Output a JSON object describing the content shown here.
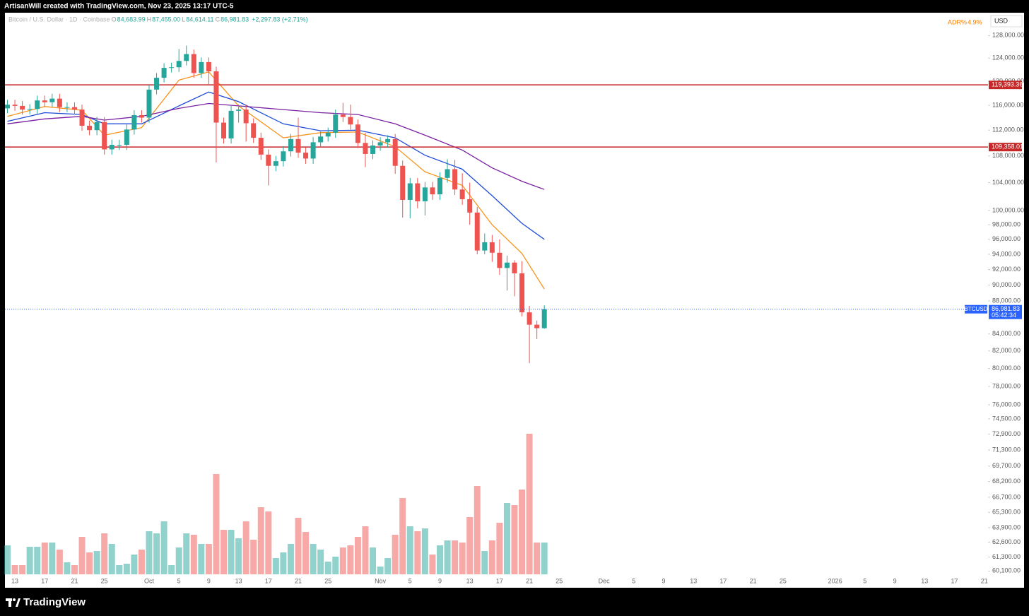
{
  "header": {
    "title": "ArtisanWill created with TradingView.com, Nov 23, 2025 13:17 UTC-5"
  },
  "footer": {
    "brand": "TradingView"
  },
  "chart_data": {
    "type": "candlestick",
    "symbol_title": "Bitcoin / U.S. Dollar · 1D · Coinbase",
    "ohlc_legend": [
      {
        "key": "O",
        "text": "84,683.99"
      },
      {
        "key": "H",
        "text": "87,455.00"
      },
      {
        "key": "L",
        "text": "84,614.11"
      },
      {
        "key": "C",
        "text": "86,981.83"
      }
    ],
    "change": "+2,297.83 (+2.71%)",
    "indicator": {
      "name": "ADR%",
      "text": "4.9%"
    },
    "currency": "USD",
    "up_color": "#26a69a",
    "down_color": "#ef5350",
    "log_scale": true,
    "grid": false,
    "xlim": [
      "2025-09-11T16:00",
      "2026-01-21T12:00"
    ],
    "ylim": [
      58700,
      132200
    ],
    "x": [
      "2025-09-12",
      "2025-09-13",
      "2025-09-14",
      "2025-09-15",
      "2025-09-16",
      "2025-09-17",
      "2025-09-18",
      "2025-09-19",
      "2025-09-20",
      "2025-09-21",
      "2025-09-22",
      "2025-09-23",
      "2025-09-24",
      "2025-09-25",
      "2025-09-26",
      "2025-09-27",
      "2025-09-28",
      "2025-09-29",
      "2025-09-30",
      "2025-10-01",
      "2025-10-02",
      "2025-10-03",
      "2025-10-04",
      "2025-10-05",
      "2025-10-06",
      "2025-10-07",
      "2025-10-08",
      "2025-10-09",
      "2025-10-10",
      "2025-10-11",
      "2025-10-12",
      "2025-10-13",
      "2025-10-14",
      "2025-10-15",
      "2025-10-16",
      "2025-10-17",
      "2025-10-18",
      "2025-10-19",
      "2025-10-20",
      "2025-10-21",
      "2025-10-22",
      "2025-10-23",
      "2025-10-24",
      "2025-10-25",
      "2025-10-26",
      "2025-10-27",
      "2025-10-28",
      "2025-10-29",
      "2025-10-30",
      "2025-10-31",
      "2025-11-01",
      "2025-11-02",
      "2025-11-03",
      "2025-11-04",
      "2025-11-05",
      "2025-11-06",
      "2025-11-07",
      "2025-11-08",
      "2025-11-09",
      "2025-11-10",
      "2025-11-11",
      "2025-11-12",
      "2025-11-13",
      "2025-11-14",
      "2025-11-15",
      "2025-11-16",
      "2025-11-17",
      "2025-11-18",
      "2025-11-19",
      "2025-11-20",
      "2025-11-21",
      "2025-11-22",
      "2025-11-23"
    ],
    "open": [
      115500,
      116100,
      115900,
      115300,
      115400,
      116800,
      116500,
      117100,
      115700,
      115700,
      115300,
      112700,
      112000,
      113300,
      109000,
      109700,
      109700,
      112100,
      114400,
      114000,
      118600,
      120600,
      122300,
      122400,
      123500,
      124700,
      121400,
      123300,
      121700,
      113200,
      110700,
      115100,
      115300,
      113100,
      110800,
      108200,
      106500,
      107200,
      108700,
      110600,
      108500,
      107600,
      110100,
      111000,
      111600,
      114500,
      114100,
      112900,
      110000,
      108300,
      109600,
      110100,
      110600,
      106500,
      101500,
      103900,
      101300,
      103300,
      102300,
      104700,
      106000,
      103000,
      101600,
      99700,
      94500,
      95600,
      94200,
      92200,
      92900,
      91500,
      86600,
      85100,
      84683.99
    ],
    "high": [
      116900,
      116900,
      116700,
      116200,
      117600,
      117600,
      117900,
      117900,
      116500,
      116500,
      116100,
      113500,
      114100,
      114100,
      110500,
      110500,
      112900,
      115200,
      115200,
      119400,
      121400,
      123100,
      123200,
      125600,
      126200,
      125500,
      124100,
      124100,
      122500,
      114000,
      115900,
      116100,
      116100,
      113900,
      111600,
      109000,
      108000,
      109500,
      111400,
      114000,
      109300,
      110900,
      111800,
      112400,
      115300,
      116400,
      116100,
      113700,
      111600,
      110400,
      110900,
      111200,
      111400,
      107300,
      104700,
      104700,
      104100,
      104100,
      105500,
      107500,
      107400,
      105400,
      104000,
      100500,
      96800,
      96600,
      96000,
      93800,
      93200,
      93100,
      87400,
      85600,
      87455
    ],
    "low": [
      114700,
      115100,
      114500,
      114500,
      114600,
      115700,
      115700,
      114900,
      114900,
      114500,
      111900,
      111200,
      111200,
      108200,
      108200,
      108900,
      108900,
      111300,
      113200,
      113200,
      117800,
      119800,
      121500,
      121600,
      122700,
      120600,
      120600,
      119500,
      107000,
      109900,
      109900,
      113200,
      110200,
      110000,
      107400,
      103600,
      105700,
      106400,
      107900,
      107700,
      106800,
      106800,
      109300,
      110200,
      110800,
      113300,
      112100,
      109200,
      106300,
      107500,
      108800,
      109300,
      105300,
      99000,
      98900,
      100300,
      99300,
      101500,
      101500,
      104000,
      102200,
      100800,
      98000,
      94000,
      94000,
      93000,
      91300,
      89300,
      88600,
      86100,
      80600,
      83400,
      84614.11
    ],
    "close": [
      116100,
      115900,
      115300,
      115400,
      116800,
      116500,
      117100,
      115700,
      115700,
      115300,
      112700,
      112000,
      113300,
      109000,
      109700,
      109700,
      112100,
      114400,
      114000,
      118600,
      120600,
      122300,
      122400,
      123500,
      124700,
      121400,
      123300,
      121700,
      113200,
      110700,
      115100,
      115300,
      113100,
      110800,
      108200,
      106500,
      107200,
      108700,
      110600,
      108500,
      107600,
      110100,
      111000,
      111600,
      114500,
      114100,
      112900,
      110000,
      108300,
      109600,
      110100,
      110600,
      106500,
      101500,
      103900,
      101300,
      103300,
      102300,
      104700,
      106000,
      103000,
      101600,
      99700,
      94500,
      95600,
      94200,
      92200,
      92900,
      91500,
      86600,
      85100,
      84683.99,
      86981.83
    ],
    "volume": {
      "ylim": [
        0,
        230
      ],
      "values": [
        41,
        13,
        13,
        39,
        39,
        45,
        45,
        35,
        17,
        13,
        53,
        31,
        33,
        58,
        43,
        13,
        15,
        28,
        35,
        61,
        58,
        75,
        13,
        38,
        58,
        56,
        43,
        43,
        142,
        63,
        63,
        51,
        75,
        49,
        95,
        89,
        23,
        31,
        43,
        80,
        60,
        43,
        35,
        18,
        25,
        38,
        41,
        53,
        68,
        38,
        11,
        23,
        56,
        108,
        68,
        61,
        65,
        28,
        41,
        48,
        48,
        45,
        81,
        125,
        33,
        48,
        73,
        101,
        98,
        120,
        199,
        45,
        45
      ]
    },
    "moving_averages": [
      {
        "color": "#f7931a",
        "x": [
          "2025-09-12",
          "2025-09-17",
          "2025-09-22",
          "2025-09-25",
          "2025-09-30",
          "2025-10-05",
          "2025-10-09",
          "2025-10-13",
          "2025-10-19",
          "2025-10-24",
          "2025-10-29",
          "2025-11-03",
          "2025-11-07",
          "2025-11-12",
          "2025-11-16",
          "2025-11-20",
          "2025-11-23"
        ],
        "values": [
          114200,
          115800,
          115200,
          111200,
          112400,
          120200,
          121600,
          115900,
          110800,
          111600,
          111700,
          109400,
          105600,
          103600,
          98000,
          94100,
          89500
        ]
      },
      {
        "color": "#1e4bd8",
        "x": [
          "2025-09-12",
          "2025-09-17",
          "2025-09-22",
          "2025-09-25",
          "2025-09-30",
          "2025-10-05",
          "2025-10-09",
          "2025-10-13",
          "2025-10-19",
          "2025-10-24",
          "2025-10-29",
          "2025-11-03",
          "2025-11-07",
          "2025-11-12",
          "2025-11-16",
          "2025-11-20",
          "2025-11-23"
        ],
        "values": [
          113400,
          114800,
          114500,
          113000,
          113000,
          115900,
          118200,
          116600,
          113000,
          111900,
          112000,
          110800,
          108100,
          106000,
          102100,
          98200,
          96000
        ]
      },
      {
        "color": "#7b1fa2",
        "x": [
          "2025-09-12",
          "2025-09-17",
          "2025-09-22",
          "2025-09-25",
          "2025-09-30",
          "2025-10-05",
          "2025-10-09",
          "2025-10-13",
          "2025-10-19",
          "2025-10-24",
          "2025-10-29",
          "2025-11-03",
          "2025-11-07",
          "2025-11-12",
          "2025-11-16",
          "2025-11-20",
          "2025-11-23"
        ],
        "values": [
          113000,
          113800,
          114200,
          113600,
          114200,
          115500,
          116300,
          115900,
          115300,
          114800,
          114500,
          113000,
          111200,
          108900,
          106200,
          104200,
          103000
        ]
      }
    ],
    "levels": [
      {
        "value": 119393.36,
        "label": "119,393.36",
        "color": "#c62828"
      },
      {
        "value": 109358.01,
        "label": "109,358.01",
        "color": "#c62828"
      }
    ],
    "last_price": {
      "symbol": "BTCUSD",
      "label": "86,981.83",
      "timer": "05:42:34",
      "color": "#2962ff"
    },
    "yticks": [
      {
        "value": 128000,
        "label": "128,000.00"
      },
      {
        "value": 124000,
        "label": "124,000.00"
      },
      {
        "value": 120000,
        "label": "120,000.00"
      },
      {
        "value": 116000,
        "label": "116,000.00"
      },
      {
        "value": 112000,
        "label": "112,000.00"
      },
      {
        "value": 108000,
        "label": "108,000.00"
      },
      {
        "value": 104000,
        "label": "104,000.00"
      },
      {
        "value": 100000,
        "label": "100,000.00"
      },
      {
        "value": 98000,
        "label": "98,000.00"
      },
      {
        "value": 96000,
        "label": "96,000.00"
      },
      {
        "value": 94000,
        "label": "94,000.00"
      },
      {
        "value": 92000,
        "label": "92,000.00"
      },
      {
        "value": 90000,
        "label": "90,000.00"
      },
      {
        "value": 88000,
        "label": "88,000.00"
      },
      {
        "value": 84000,
        "label": "84,000.00"
      },
      {
        "value": 82000,
        "label": "82,000.00"
      },
      {
        "value": 80000,
        "label": "80,000.00"
      },
      {
        "value": 78000,
        "label": "78,000.00"
      },
      {
        "value": 76000,
        "label": "76,000.00"
      },
      {
        "value": 74500,
        "label": "74,500.00"
      },
      {
        "value": 72900,
        "label": "72,900.00"
      },
      {
        "value": 71300,
        "label": "71,300.00"
      },
      {
        "value": 69700,
        "label": "69,700.00"
      },
      {
        "value": 68200,
        "label": "68,200.00"
      },
      {
        "value": 66700,
        "label": "66,700.00"
      },
      {
        "value": 65300,
        "label": "65,300.00"
      },
      {
        "value": 63900,
        "label": "63,900.00"
      },
      {
        "value": 62600,
        "label": "62,600.00"
      },
      {
        "value": 61300,
        "label": "61,300.00"
      },
      {
        "value": 60100,
        "label": "60,100.00"
      }
    ],
    "xticks": [
      {
        "value": "2025-09-13",
        "label": "13"
      },
      {
        "value": "2025-09-17",
        "label": "17"
      },
      {
        "value": "2025-09-21",
        "label": "21"
      },
      {
        "value": "2025-09-25",
        "label": "25"
      },
      {
        "value": "2025-10-01",
        "label": "Oct"
      },
      {
        "value": "2025-10-05",
        "label": "5"
      },
      {
        "value": "2025-10-09",
        "label": "9"
      },
      {
        "value": "2025-10-13",
        "label": "13"
      },
      {
        "value": "2025-10-17",
        "label": "17"
      },
      {
        "value": "2025-10-21",
        "label": "21"
      },
      {
        "value": "2025-10-25",
        "label": "25"
      },
      {
        "value": "2025-11-01",
        "label": "Nov"
      },
      {
        "value": "2025-11-05",
        "label": "5"
      },
      {
        "value": "2025-11-09",
        "label": "9"
      },
      {
        "value": "2025-11-13",
        "label": "13"
      },
      {
        "value": "2025-11-17",
        "label": "17"
      },
      {
        "value": "2025-11-21",
        "label": "21"
      },
      {
        "value": "2025-11-25",
        "label": "25"
      },
      {
        "value": "2025-12-01",
        "label": "Dec"
      },
      {
        "value": "2025-12-05",
        "label": "5"
      },
      {
        "value": "2025-12-09",
        "label": "9"
      },
      {
        "value": "2025-12-13",
        "label": "13"
      },
      {
        "value": "2025-12-17",
        "label": "17"
      },
      {
        "value": "2025-12-21",
        "label": "21"
      },
      {
        "value": "2025-12-25",
        "label": "25"
      },
      {
        "value": "2026-01-01",
        "label": "2026"
      },
      {
        "value": "2026-01-05",
        "label": "5"
      },
      {
        "value": "2026-01-09",
        "label": "9"
      },
      {
        "value": "2026-01-13",
        "label": "13"
      },
      {
        "value": "2026-01-17",
        "label": "17"
      },
      {
        "value": "2026-01-21",
        "label": "21"
      }
    ]
  }
}
